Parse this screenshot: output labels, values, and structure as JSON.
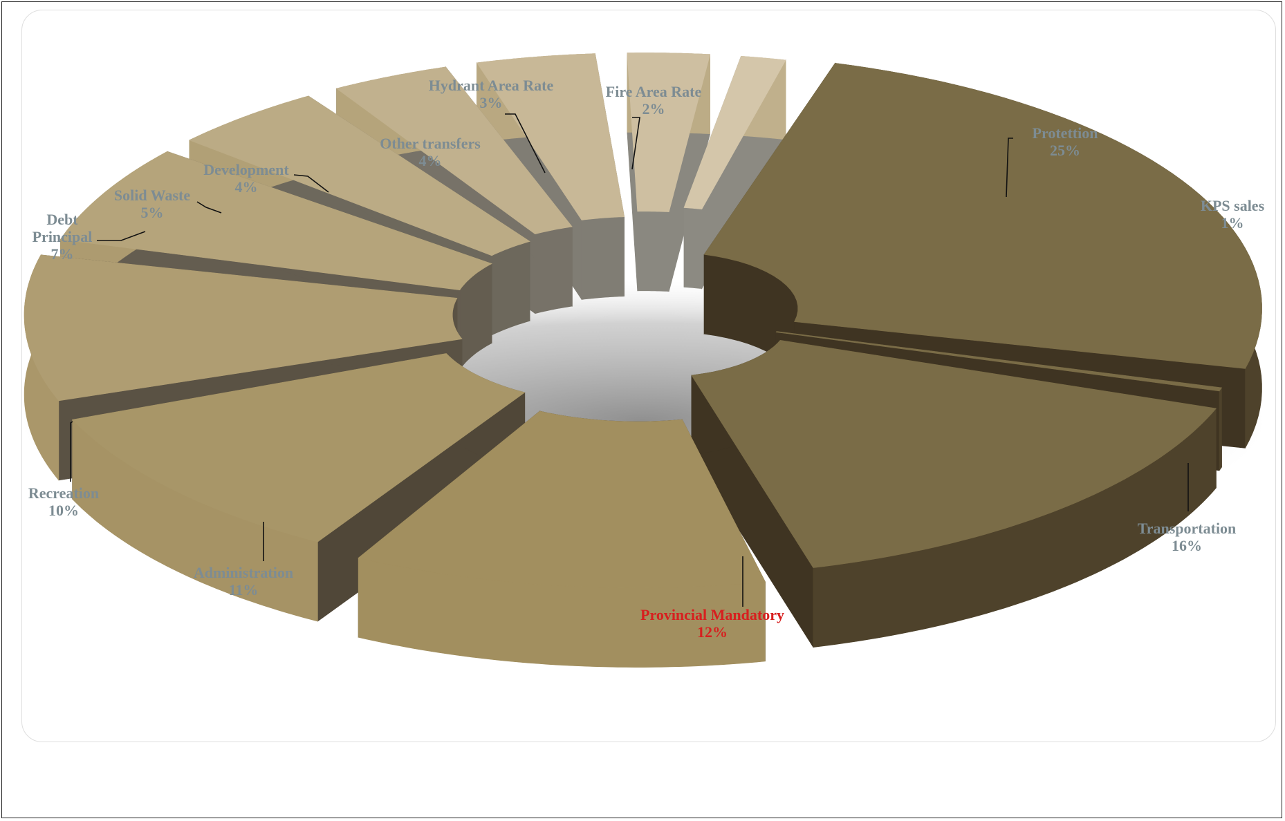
{
  "chart_data": {
    "type": "pie",
    "title": "",
    "slices": [
      {
        "name": "Protettion",
        "percent_label": "25%",
        "value": 25
      },
      {
        "name": "KPS sales",
        "percent_label": "1%",
        "value": 1
      },
      {
        "name": "Transportation",
        "percent_label": "16%",
        "value": 16
      },
      {
        "name": "Provincial Mandatory",
        "percent_label": "12%",
        "value": 12
      },
      {
        "name": "Administration",
        "percent_label": "11%",
        "value": 11
      },
      {
        "name": "Recreation",
        "percent_label": "10%",
        "value": 10
      },
      {
        "name": "Debt Principal",
        "percent_label": "7%",
        "value": 7
      },
      {
        "name": "Solid Waste",
        "percent_label": "5%",
        "value": 5
      },
      {
        "name": "Development",
        "percent_label": "4%",
        "value": 4
      },
      {
        "name": "Other transfers",
        "percent_label": "4%",
        "value": 4
      },
      {
        "name": "Hydrant Area Rate",
        "percent_label": "3%",
        "value": 3
      },
      {
        "name": "Fire Area Rate",
        "percent_label": "2%",
        "value": 2
      }
    ],
    "colors": {
      "label": "#7d8c93",
      "highlight_label": "#d71f1f",
      "top_dark": "#7a6c47",
      "top_mid": "#a28f5f",
      "top_light": "#d4c6aa",
      "side_dark": "#3f3422",
      "side_light": "#8c8a82"
    }
  }
}
